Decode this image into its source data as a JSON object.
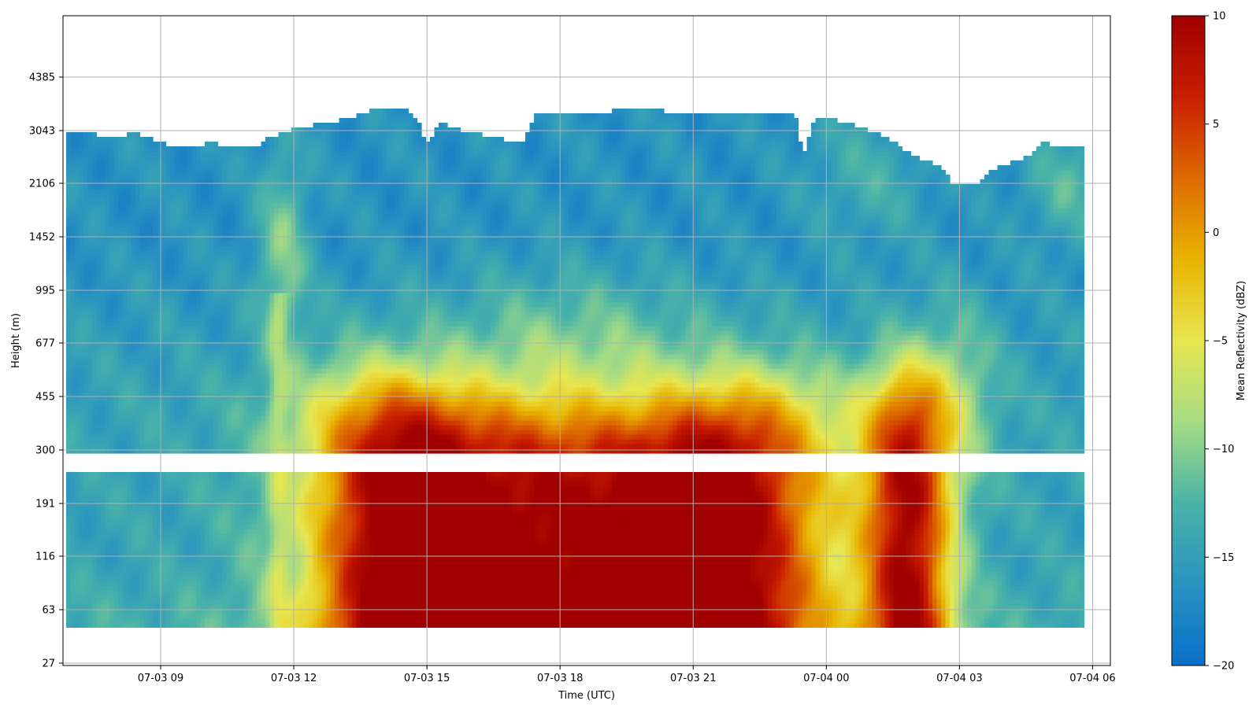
{
  "chart_data": {
    "type": "heatmap",
    "title": "",
    "xlabel": "Time (UTC)",
    "ylabel": "Height (m)",
    "x_ticks": [
      "07-03 09",
      "07-03 12",
      "07-03 15",
      "07-03 18",
      "07-03 21",
      "07-04 00",
      "07-04 03",
      "07-04 06"
    ],
    "y_ticks": [
      "27",
      "63",
      "116",
      "191",
      "300",
      "455",
      "677",
      "995",
      "1452",
      "2106",
      "3043",
      "4385"
    ],
    "xlim_hours": [
      6.8,
      30.4
    ],
    "colorbar": {
      "label": "Mean Reflectivity (dBZ)",
      "range": [
        -20,
        10
      ],
      "ticks": [
        "10",
        "5",
        "0",
        "−5",
        "−10",
        "−15",
        "−20"
      ],
      "colormap": [
        "#0a6ec8",
        "#2a93c0",
        "#49b3a8",
        "#a6dc84",
        "#e8e650",
        "#e8b400",
        "#dd6a00",
        "#c81e00",
        "#a00000"
      ]
    },
    "grid": true
  }
}
